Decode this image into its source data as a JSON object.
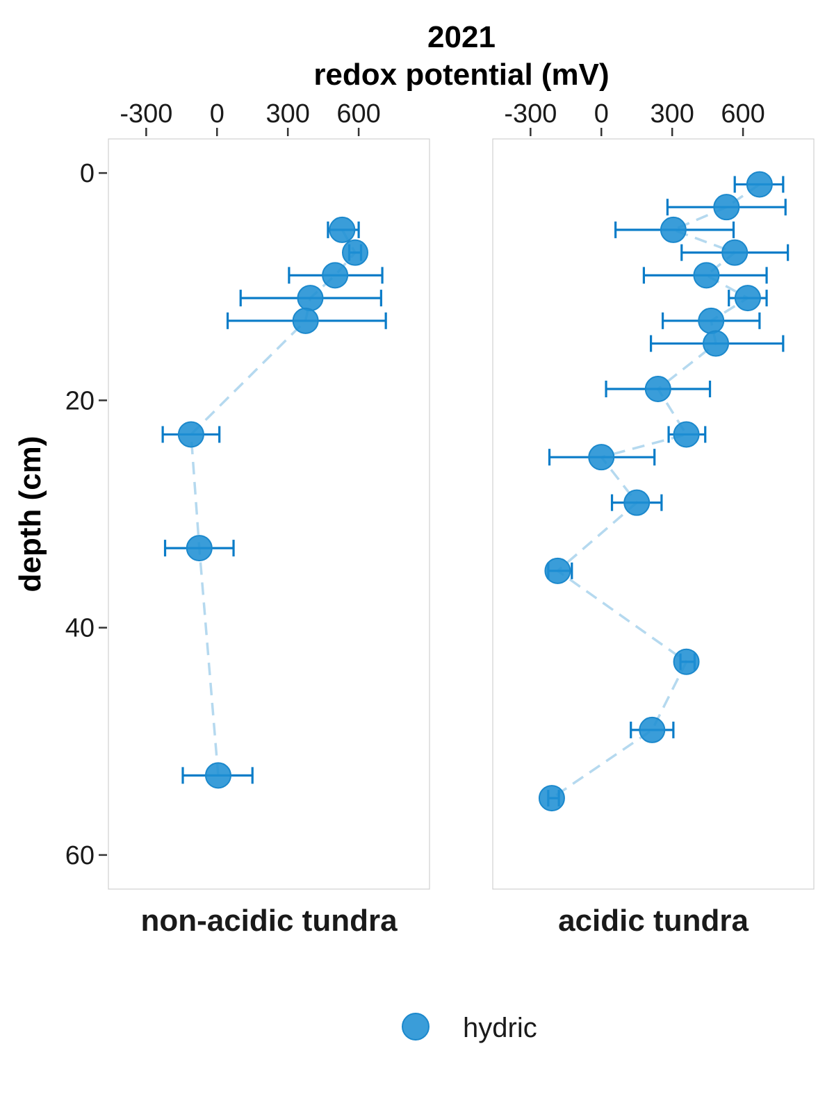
{
  "chart_data": {
    "type": "scatter",
    "title": "2021",
    "xlabel": "redox potential (mV)",
    "ylabel": "depth (cm)",
    "x_ticks": [
      "-300",
      "0",
      "300",
      "600"
    ],
    "x_tick_values": [
      -300,
      0,
      300,
      600
    ],
    "y_ticks": [
      "0",
      "20",
      "40",
      "60"
    ],
    "y_tick_values": [
      0,
      20,
      40,
      60
    ],
    "xlim": [
      -460,
      900
    ],
    "ylim": [
      -3,
      63
    ],
    "y_reversed": true,
    "x_axis_position": "top",
    "grid": false,
    "legend_position": "bottom",
    "colors": {
      "point": "#1f8fd4",
      "errorbar": "#0a7cc8",
      "line": "#b5d9ef",
      "frame": "#d0d0d0"
    },
    "legend": {
      "series_name": "hydric"
    },
    "panels": [
      {
        "label": "non-acidic tundra",
        "points": [
          {
            "x": 530,
            "y": 5,
            "xmin": 470,
            "xmax": 600
          },
          {
            "x": 585,
            "y": 7,
            "xmin": 560,
            "xmax": 610
          },
          {
            "x": 500,
            "y": 9,
            "xmin": 305,
            "xmax": 700
          },
          {
            "x": 395,
            "y": 11,
            "xmin": 100,
            "xmax": 695
          },
          {
            "x": 375,
            "y": 13,
            "xmin": 45,
            "xmax": 715
          },
          {
            "x": -110,
            "y": 23,
            "xmin": -230,
            "xmax": 10
          },
          {
            "x": -75,
            "y": 33,
            "xmin": -220,
            "xmax": 70
          },
          {
            "x": 5,
            "y": 53,
            "xmin": -145,
            "xmax": 150
          }
        ]
      },
      {
        "label": "acidic tundra",
        "points": [
          {
            "x": 670,
            "y": 1,
            "xmin": 565,
            "xmax": 770
          },
          {
            "x": 530,
            "y": 3,
            "xmin": 280,
            "xmax": 780
          },
          {
            "x": 305,
            "y": 5,
            "xmin": 60,
            "xmax": 560
          },
          {
            "x": 565,
            "y": 7,
            "xmin": 340,
            "xmax": 790
          },
          {
            "x": 445,
            "y": 9,
            "xmin": 180,
            "xmax": 700
          },
          {
            "x": 620,
            "y": 11,
            "xmin": 540,
            "xmax": 700
          },
          {
            "x": 465,
            "y": 13,
            "xmin": 260,
            "xmax": 670
          },
          {
            "x": 485,
            "y": 15,
            "xmin": 210,
            "xmax": 770
          },
          {
            "x": 240,
            "y": 19,
            "xmin": 20,
            "xmax": 460
          },
          {
            "x": 360,
            "y": 23,
            "xmin": 285,
            "xmax": 440
          },
          {
            "x": 0,
            "y": 25,
            "xmin": -220,
            "xmax": 225
          },
          {
            "x": 150,
            "y": 29,
            "xmin": 45,
            "xmax": 255
          },
          {
            "x": -185,
            "y": 35,
            "xmin": -225,
            "xmax": -125
          },
          {
            "x": 360,
            "y": 43,
            "xmin": 335,
            "xmax": 395
          },
          {
            "x": 215,
            "y": 49,
            "xmin": 125,
            "xmax": 305
          },
          {
            "x": -210,
            "y": 55,
            "xmin": -225,
            "xmax": -180
          }
        ]
      }
    ]
  }
}
